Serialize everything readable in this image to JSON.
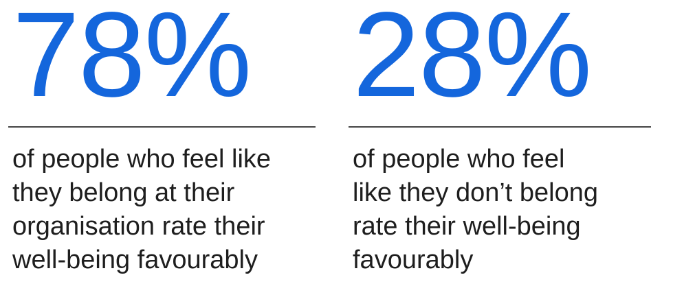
{
  "stats": [
    {
      "value": "78%",
      "description": [
        "of people who feel like",
        "they belong at their",
        "organisation rate their",
        "well-being favourably"
      ]
    },
    {
      "value": "28%",
      "description": [
        "of people who feel",
        "like they don’t belong",
        "rate their well-being",
        "favourably"
      ]
    }
  ]
}
